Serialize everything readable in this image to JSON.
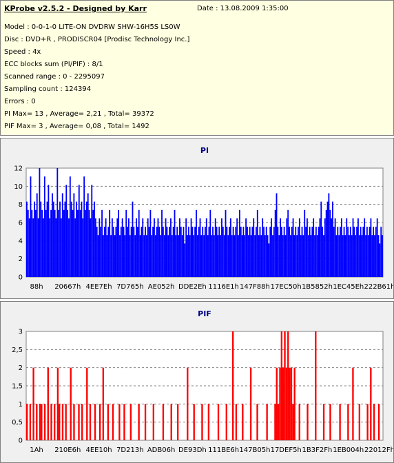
{
  "info": {
    "title": "KProbe v2.5.2 - Designed by Karr",
    "date": "Date : 13.08.2009 1:35:00",
    "lines": [
      "Model : 0-0-1-0 LITE-ON DVDRW SHW-16H5S  LS0W",
      "Disc : DVD+R , PRODISCR04 [Prodisc Technology Inc.]",
      "Speed : 4x",
      "ECC blocks sum (PI/PIF) : 8/1",
      "Scanned range : 0 - 2295097",
      "Sampling count : 124394",
      "Errors : 0",
      "PI Max= 13 , Average= 2,21 , Total= 39372",
      "PIF Max= 3 , Average= 0,08 , Total= 1492"
    ]
  },
  "chart_data": [
    {
      "type": "bar",
      "title": "PI",
      "color": "#0000ff",
      "ylim": [
        0,
        13
      ],
      "yticks": [
        "0",
        "2",
        "4",
        "6",
        "8",
        "10",
        "12"
      ],
      "xticks": [
        "88h",
        "20667h",
        "4EE7Eh",
        "7D765h",
        "AE052h",
        "DDE2Eh",
        "1116E1h",
        "147F88h",
        "17EC50h",
        "1B5852h",
        "1EC45Eh",
        "222B61h"
      ],
      "grid": true,
      "values": [
        9,
        8,
        7,
        12,
        8,
        7,
        9,
        8,
        10,
        7,
        13,
        9,
        8,
        7,
        12,
        8,
        9,
        11,
        7,
        8,
        10,
        9,
        8,
        7,
        13,
        8,
        9,
        7,
        10,
        8,
        9,
        11,
        8,
        7,
        12,
        9,
        8,
        10,
        7,
        9,
        8,
        11,
        8,
        9,
        7,
        12,
        8,
        9,
        10,
        8,
        7,
        11,
        8,
        9,
        7,
        6,
        5,
        7,
        6,
        8,
        5,
        6,
        7,
        5,
        6,
        8,
        5,
        7,
        6,
        5,
        6,
        7,
        8,
        5,
        6,
        7,
        6,
        5,
        8,
        6,
        7,
        5,
        6,
        9,
        6,
        5,
        7,
        6,
        8,
        5,
        6,
        7,
        5,
        6,
        5,
        7,
        6,
        8,
        5,
        6,
        7,
        5,
        6,
        7,
        6,
        5,
        8,
        6,
        5,
        7,
        6,
        5,
        6,
        7,
        5,
        6,
        8,
        5,
        6,
        5,
        7,
        6,
        5,
        6,
        4,
        7,
        5,
        6,
        5,
        7,
        6,
        5,
        6,
        8,
        5,
        6,
        7,
        5,
        6,
        5,
        6,
        7,
        5,
        6,
        8,
        5,
        6,
        5,
        7,
        6,
        5,
        6,
        5,
        7,
        6,
        5,
        8,
        6,
        5,
        6,
        7,
        5,
        6,
        5,
        6,
        7,
        5,
        8,
        6,
        5,
        6,
        5,
        7,
        6,
        5,
        6,
        5,
        6,
        7,
        5,
        6,
        8,
        5,
        6,
        5,
        7,
        6,
        5,
        6,
        5,
        4,
        6,
        7,
        5,
        6,
        8,
        10,
        6,
        5,
        7,
        6,
        5,
        6,
        5,
        7,
        8,
        6,
        5,
        6,
        7,
        5,
        6,
        5,
        6,
        7,
        5,
        6,
        5,
        8,
        6,
        7,
        5,
        6,
        5,
        6,
        7,
        5,
        6,
        5,
        6,
        7,
        9,
        6,
        5,
        7,
        8,
        9,
        10,
        8,
        7,
        9,
        6,
        7,
        5,
        6,
        5,
        6,
        7,
        5,
        6,
        5,
        7,
        6,
        5,
        6,
        5,
        7,
        6,
        5,
        6,
        7,
        5,
        6,
        5,
        6,
        7,
        5,
        6,
        5,
        6,
        7,
        5,
        6,
        5,
        6,
        7,
        5,
        4,
        6,
        5
      ]
    },
    {
      "type": "bar",
      "title": "PIF",
      "color": "#ff0000",
      "ylim": [
        0,
        3
      ],
      "yticks": [
        "0",
        "0,5",
        "1",
        "1,5",
        "2",
        "2,5",
        "3"
      ],
      "xticks": [
        "1Ah",
        "210E6h",
        "4EE10h",
        "7D213h",
        "ADB06h",
        "DE93Dh",
        "111BE6h",
        "147B05h",
        "17DEF5h",
        "1B3F2Fh",
        "1EB004h",
        "22012Fh"
      ],
      "grid": true,
      "values": [
        1,
        0,
        1,
        0,
        2,
        0,
        1,
        0,
        1,
        1,
        0,
        1,
        0,
        2,
        0,
        1,
        0,
        1,
        0,
        2,
        1,
        0,
        1,
        0,
        1,
        0,
        0,
        2,
        0,
        1,
        0,
        0,
        1,
        0,
        1,
        0,
        0,
        2,
        0,
        1,
        0,
        0,
        1,
        0,
        0,
        1,
        0,
        2,
        0,
        0,
        1,
        0,
        0,
        1,
        0,
        0,
        0,
        1,
        0,
        0,
        1,
        0,
        0,
        0,
        1,
        0,
        0,
        0,
        0,
        1,
        0,
        0,
        0,
        1,
        0,
        0,
        0,
        0,
        1,
        0,
        0,
        0,
        0,
        0,
        1,
        0,
        0,
        0,
        0,
        1,
        0,
        0,
        0,
        1,
        0,
        0,
        0,
        0,
        0,
        2,
        0,
        0,
        0,
        1,
        0,
        0,
        0,
        0,
        1,
        0,
        0,
        0,
        1,
        0,
        0,
        0,
        0,
        0,
        1,
        0,
        0,
        0,
        0,
        1,
        0,
        0,
        0,
        3,
        0,
        1,
        0,
        0,
        0,
        1,
        0,
        0,
        0,
        0,
        2,
        0,
        0,
        0,
        1,
        0,
        0,
        0,
        0,
        0,
        1,
        0,
        0,
        0,
        0,
        1,
        2,
        1,
        2,
        3,
        2,
        3,
        2,
        3,
        2,
        2,
        1,
        2,
        0,
        0,
        1,
        0,
        0,
        0,
        0,
        1,
        0,
        0,
        0,
        0,
        3,
        0,
        0,
        0,
        0,
        1,
        0,
        0,
        0,
        1,
        0,
        0,
        0,
        0,
        0,
        1,
        0,
        0,
        0,
        0,
        1,
        0,
        0,
        2,
        0,
        0,
        0,
        1,
        0,
        0,
        0,
        0,
        1,
        0,
        2,
        0,
        1,
        0,
        0,
        1,
        0,
        0
      ]
    }
  ]
}
